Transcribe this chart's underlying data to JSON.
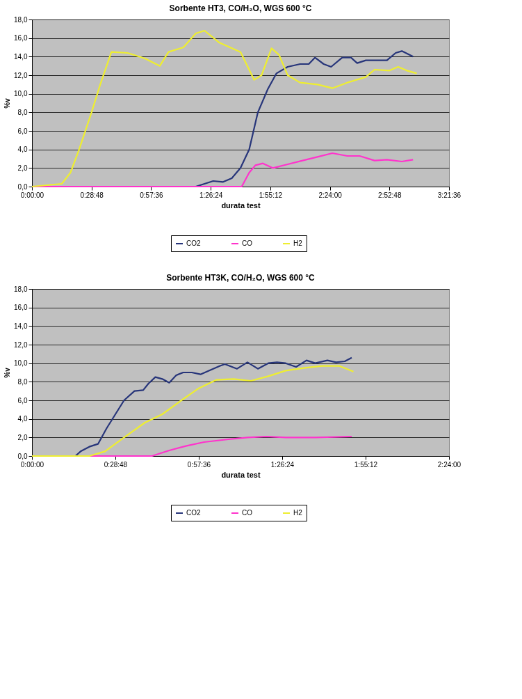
{
  "chart_data": [
    {
      "type": "line",
      "title": "Sorbente HT3, CO/H₂O, WGS 600 °C",
      "xlabel": "durata test",
      "ylabel": "%v",
      "grid": "y",
      "legend": "bottom",
      "marker": "none",
      "line_style": "solid",
      "xlim": [
        0,
        3.36
      ],
      "xticks": [
        {
          "value": 0,
          "label": "0:00:00"
        },
        {
          "value": 0.48,
          "label": "0:28:48"
        },
        {
          "value": 0.96,
          "label": "0:57:36"
        },
        {
          "value": 1.44,
          "label": "1:26:24"
        },
        {
          "value": 1.92,
          "label": "1:55:12"
        },
        {
          "value": 2.4,
          "label": "2:24:00"
        },
        {
          "value": 2.88,
          "label": "2:52:48"
        },
        {
          "value": 3.36,
          "label": "3:21:36"
        }
      ],
      "ylim": [
        0,
        18
      ],
      "yticks": [
        {
          "value": 0,
          "label": "0,0"
        },
        {
          "value": 2,
          "label": "2,0"
        },
        {
          "value": 4,
          "label": "4,0"
        },
        {
          "value": 6,
          "label": "6,0"
        },
        {
          "value": 8,
          "label": "8,0"
        },
        {
          "value": 10,
          "label": "10,0"
        },
        {
          "value": 12,
          "label": "12,0"
        },
        {
          "value": 14,
          "label": "14,0"
        },
        {
          "value": 16,
          "label": "16,0"
        },
        {
          "value": 18,
          "label": "18,0"
        }
      ],
      "series": [
        {
          "name": "CO2",
          "color": "#27357a",
          "x": [
            0,
            1.32,
            1.46,
            1.54,
            1.61,
            1.68,
            1.75,
            1.82,
            1.9,
            1.97,
            2.06,
            2.16,
            2.23,
            2.28,
            2.35,
            2.41,
            2.5,
            2.57,
            2.62,
            2.69,
            2.78,
            2.86,
            2.93,
            2.98,
            3.07
          ],
          "values": [
            0,
            0,
            0.6,
            0.5,
            0.9,
            2,
            4,
            8,
            10.5,
            12.2,
            12.9,
            13.2,
            13.2,
            13.9,
            13.2,
            12.9,
            13.9,
            13.9,
            13.3,
            13.6,
            13.6,
            13.6,
            14.4,
            14.6,
            14
          ]
        },
        {
          "name": "CO",
          "color": "#ff33cc",
          "x": [
            0,
            1.69,
            1.75,
            1.8,
            1.86,
            1.94,
            2.06,
            2.18,
            2.3,
            2.42,
            2.54,
            2.64,
            2.76,
            2.86,
            2.98,
            3.07
          ],
          "values": [
            0,
            0,
            1.5,
            2.3,
            2.5,
            2,
            2.4,
            2.8,
            3.2,
            3.6,
            3.3,
            3.3,
            2.8,
            2.9,
            2.7,
            2.9
          ]
        },
        {
          "name": "H2",
          "color": "#eeee30",
          "x": [
            0,
            0.24,
            0.31,
            0.38,
            0.48,
            0.55,
            0.64,
            0.77,
            0.91,
            1.03,
            1.1,
            1.22,
            1.32,
            1.39,
            1.51,
            1.68,
            1.79,
            1.85,
            1.93,
            1.99,
            2.06,
            2.16,
            2.3,
            2.42,
            2.54,
            2.69,
            2.76,
            2.88,
            2.95,
            3.02,
            3.1
          ],
          "values": [
            0,
            0.3,
            1.5,
            4,
            8,
            11,
            14.5,
            14.4,
            13.8,
            13,
            14.5,
            15,
            16.5,
            16.8,
            15.5,
            14.5,
            11.5,
            12,
            14.9,
            14.2,
            12,
            11.2,
            11,
            10.6,
            11.2,
            11.8,
            12.6,
            12.5,
            12.9,
            12.5,
            12.2
          ]
        }
      ]
    },
    {
      "type": "line",
      "title": "Sorbente HT3K, CO/H₂O, WGS 600 °C",
      "xlabel": "durata test",
      "ylabel": "%v",
      "grid": "y",
      "legend": "bottom",
      "marker": "none",
      "line_style": "solid",
      "xlim": [
        0,
        2.4
      ],
      "xticks": [
        {
          "value": 0,
          "label": "0:00:00"
        },
        {
          "value": 0.48,
          "label": "0:28:48"
        },
        {
          "value": 0.96,
          "label": "0:57:36"
        },
        {
          "value": 1.44,
          "label": "1:26:24"
        },
        {
          "value": 1.92,
          "label": "1:55:12"
        },
        {
          "value": 2.4,
          "label": "2:24:00"
        }
      ],
      "ylim": [
        0,
        18
      ],
      "yticks": [
        {
          "value": 0,
          "label": "0,0"
        },
        {
          "value": 2,
          "label": "2,0"
        },
        {
          "value": 4,
          "label": "4,0"
        },
        {
          "value": 6,
          "label": "6,0"
        },
        {
          "value": 8,
          "label": "8,0"
        },
        {
          "value": 10,
          "label": "10,0"
        },
        {
          "value": 12,
          "label": "12,0"
        },
        {
          "value": 14,
          "label": "14,0"
        },
        {
          "value": 16,
          "label": "16,0"
        },
        {
          "value": 18,
          "label": "18,0"
        }
      ],
      "series": [
        {
          "name": "CO2",
          "color": "#27357a",
          "x": [
            0,
            0.25,
            0.28,
            0.33,
            0.38,
            0.43,
            0.48,
            0.53,
            0.59,
            0.64,
            0.67,
            0.71,
            0.75,
            0.79,
            0.83,
            0.87,
            0.92,
            0.97,
            1.02,
            1.08,
            1.11,
            1.18,
            1.24,
            1.3,
            1.36,
            1.41,
            1.46,
            1.52,
            1.58,
            1.63,
            1.7,
            1.75,
            1.8,
            1.84
          ],
          "values": [
            0,
            0,
            0.5,
            1,
            1.3,
            3,
            4.5,
            6,
            7,
            7.1,
            7.8,
            8.5,
            8.3,
            7.9,
            8.7,
            9,
            9,
            8.8,
            9.2,
            9.7,
            9.9,
            9.4,
            10.1,
            9.4,
            10,
            10.1,
            10,
            9.6,
            10.3,
            10,
            10.3,
            10.1,
            10.2,
            10.6
          ]
        },
        {
          "name": "CO",
          "color": "#ff33cc",
          "x": [
            0,
            0.69,
            0.79,
            0.89,
            0.99,
            1.13,
            1.24,
            1.35,
            1.46,
            1.63,
            1.84
          ],
          "values": [
            0,
            0,
            0.6,
            1.1,
            1.5,
            1.8,
            2,
            2.1,
            2,
            2,
            2.1
          ]
        },
        {
          "name": "H2",
          "color": "#eeee30",
          "x": [
            0,
            0.33,
            0.42,
            0.53,
            0.65,
            0.75,
            0.86,
            0.96,
            1.06,
            1.16,
            1.26,
            1.36,
            1.46,
            1.57,
            1.67,
            1.77,
            1.85
          ],
          "values": [
            0,
            0,
            0.5,
            2,
            3.6,
            4.5,
            6,
            7.3,
            8.2,
            8.3,
            8.1,
            8.6,
            9.2,
            9.5,
            9.7,
            9.7,
            9.1
          ]
        }
      ]
    }
  ]
}
